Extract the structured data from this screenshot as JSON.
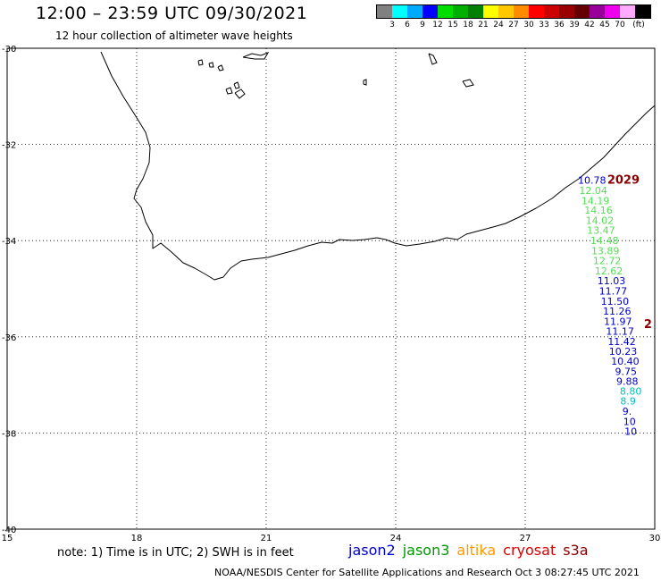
{
  "header": {
    "title": "12:00 – 23:59 UTC 09/30/2021",
    "subtitle": "12 hour collection of altimeter wave heights"
  },
  "color_legend": {
    "unit": "(ft)",
    "colors": [
      "#808080",
      "#00ffff",
      "#00aaff",
      "#0000ff",
      "#00dd00",
      "#00b000",
      "#008000",
      "#ffff00",
      "#ffc800",
      "#ff8c00",
      "#ff0000",
      "#cc0000",
      "#990000",
      "#660000",
      "#990099",
      "#ee00ee",
      "#ffaaff",
      "#000000"
    ],
    "labels": [
      "3",
      "6",
      "9",
      "12",
      "15",
      "18",
      "21",
      "24",
      "27",
      "30",
      "33",
      "36",
      "39",
      "42",
      "45",
      "70"
    ]
  },
  "map": {
    "lat_ticks": [
      "-30",
      "-32",
      "-34",
      "-36",
      "-38",
      "-40"
    ],
    "lon_ticks": [
      "15",
      "18",
      "21",
      "24",
      "27",
      "30"
    ],
    "lon_range": [
      15,
      30
    ],
    "lat_range": [
      -40,
      -30
    ]
  },
  "observations": [
    {
      "lon": 28.22,
      "lat": -32.82,
      "value": "10.78",
      "color": "#0000cc"
    },
    {
      "lon": 28.25,
      "lat": -33.03,
      "value": "12.04",
      "color": "#55dd55"
    },
    {
      "lon": 28.3,
      "lat": -33.24,
      "value": "14.19",
      "color": "#55dd55"
    },
    {
      "lon": 28.37,
      "lat": -33.44,
      "value": "14.16",
      "color": "#55dd55"
    },
    {
      "lon": 28.4,
      "lat": -33.65,
      "value": "14.02",
      "color": "#55dd55"
    },
    {
      "lon": 28.43,
      "lat": -33.86,
      "value": "13.47",
      "color": "#55dd55"
    },
    {
      "lon": 28.51,
      "lat": -34.07,
      "value": "14.48",
      "color": "#55dd55"
    },
    {
      "lon": 28.53,
      "lat": -34.28,
      "value": "13.89",
      "color": "#55dd55"
    },
    {
      "lon": 28.57,
      "lat": -34.49,
      "value": "12.72",
      "color": "#55dd55"
    },
    {
      "lon": 28.61,
      "lat": -34.7,
      "value": "12.62",
      "color": "#55dd55"
    },
    {
      "lon": 28.67,
      "lat": -34.91,
      "value": "11.03",
      "color": "#0000cc"
    },
    {
      "lon": 28.71,
      "lat": -35.12,
      "value": "11.77",
      "color": "#0000cc"
    },
    {
      "lon": 28.75,
      "lat": -35.33,
      "value": "11.50",
      "color": "#0000cc"
    },
    {
      "lon": 28.8,
      "lat": -35.54,
      "value": "11.26",
      "color": "#0000cc"
    },
    {
      "lon": 28.82,
      "lat": -35.75,
      "value": "11.97",
      "color": "#0000cc"
    },
    {
      "lon": 28.87,
      "lat": -35.96,
      "value": "11.17",
      "color": "#0000cc"
    },
    {
      "lon": 28.91,
      "lat": -36.17,
      "value": "11.42",
      "color": "#0000cc"
    },
    {
      "lon": 28.94,
      "lat": -36.38,
      "value": "10.23",
      "color": "#0000cc"
    },
    {
      "lon": 28.99,
      "lat": -36.58,
      "value": "10.40",
      "color": "#0000cc"
    },
    {
      "lon": 29.08,
      "lat": -36.79,
      "value": "9.75",
      "color": "#0000cc"
    },
    {
      "lon": 29.11,
      "lat": -37.0,
      "value": "9.88",
      "color": "#0000cc"
    },
    {
      "lon": 29.19,
      "lat": -37.2,
      "value": "8.80",
      "color": "#00bbbb"
    },
    {
      "lon": 29.2,
      "lat": -37.41,
      "value": "8.9",
      "color": "#00bbbb"
    },
    {
      "lon": 29.25,
      "lat": -37.62,
      "value": "9.",
      "color": "#0000cc"
    },
    {
      "lon": 29.27,
      "lat": -37.83,
      "value": "10",
      "color": "#0000cc"
    },
    {
      "lon": 29.3,
      "lat": -38.04,
      "value": "10",
      "color": "#0000cc"
    }
  ],
  "pass_labels": [
    {
      "lon": 28.9,
      "lat": -32.82,
      "text": "2029",
      "color": "#880000"
    },
    {
      "lon": 29.75,
      "lat": -35.82,
      "text": "2",
      "color": "#880000"
    }
  ],
  "footer": {
    "note": "note:  1)  Time is in UTC;  2)  SWH is in feet",
    "satellites": [
      {
        "name": "jason2",
        "color": "#0000cc"
      },
      {
        "name": "jason3",
        "color": "#009900"
      },
      {
        "name": "altika",
        "color": "#ff9900"
      },
      {
        "name": "cryosat",
        "color": "#dd0000"
      },
      {
        "name": "s3a",
        "color": "#880000"
      }
    ],
    "credit": "NOAA/NESDIS Center for Satellite Applications and Research    Oct  3 08:27:45 UTC 2021"
  }
}
